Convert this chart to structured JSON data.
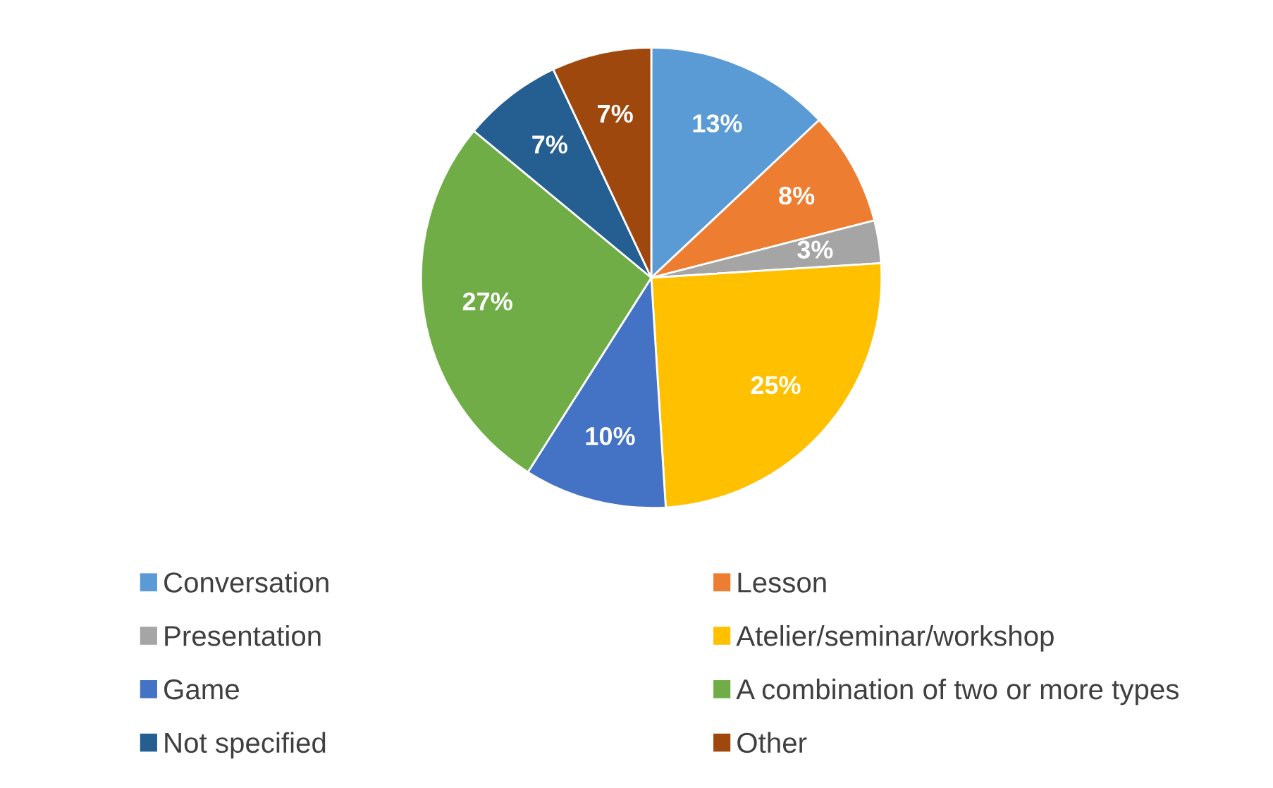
{
  "chart_data": {
    "type": "pie",
    "categories": [
      "Conversation",
      "Lesson",
      "Presentation",
      "Atelier/seminar/workshop",
      "Game",
      "A combination of two or more types",
      "Not specified",
      "Other"
    ],
    "values": [
      13,
      8,
      3,
      25,
      10,
      27,
      7,
      7
    ],
    "value_labels": [
      "13%",
      "8%",
      "3%",
      "25%",
      "10%",
      "27%",
      "7%",
      "7%"
    ],
    "colors": [
      "#5b9bd5",
      "#ed7d31",
      "#a5a5a5",
      "#ffc000",
      "#4472c4",
      "#70ad47",
      "#255e91",
      "#9e480e"
    ],
    "legend": "bottom"
  }
}
